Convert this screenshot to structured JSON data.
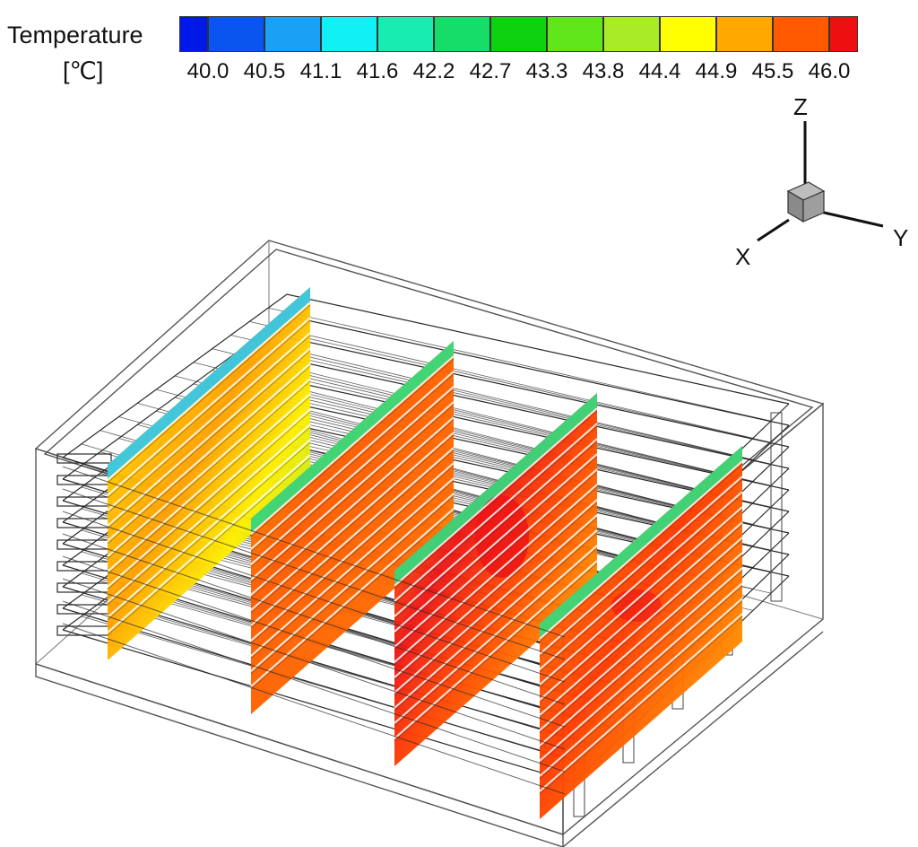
{
  "legend": {
    "title": "Temperature",
    "unit": "[℃]",
    "ticks": [
      "40.0",
      "40.5",
      "41.1",
      "41.6",
      "42.2",
      "42.7",
      "43.3",
      "43.8",
      "44.4",
      "44.9",
      "45.5",
      "46.0"
    ],
    "colors": [
      "#0018e8",
      "#0a54f0",
      "#1aa0f5",
      "#10f0f5",
      "#18ecb0",
      "#16dc6a",
      "#0cd210",
      "#60e61a",
      "#a8ec26",
      "#ffff00",
      "#ffa800",
      "#ff5a00",
      "#ee1010"
    ]
  },
  "axes": {
    "z": "Z",
    "y": "Y",
    "x": "X"
  },
  "colors": {
    "cold_edge": "#2fc8f0",
    "cool": "#2fe082",
    "green": "#52dd2a",
    "yellow": "#fff000",
    "orange": "#ff9d00",
    "red_orange": "#ff5c00",
    "hot": "#ee1515",
    "wire": "#2a2a2a"
  }
}
